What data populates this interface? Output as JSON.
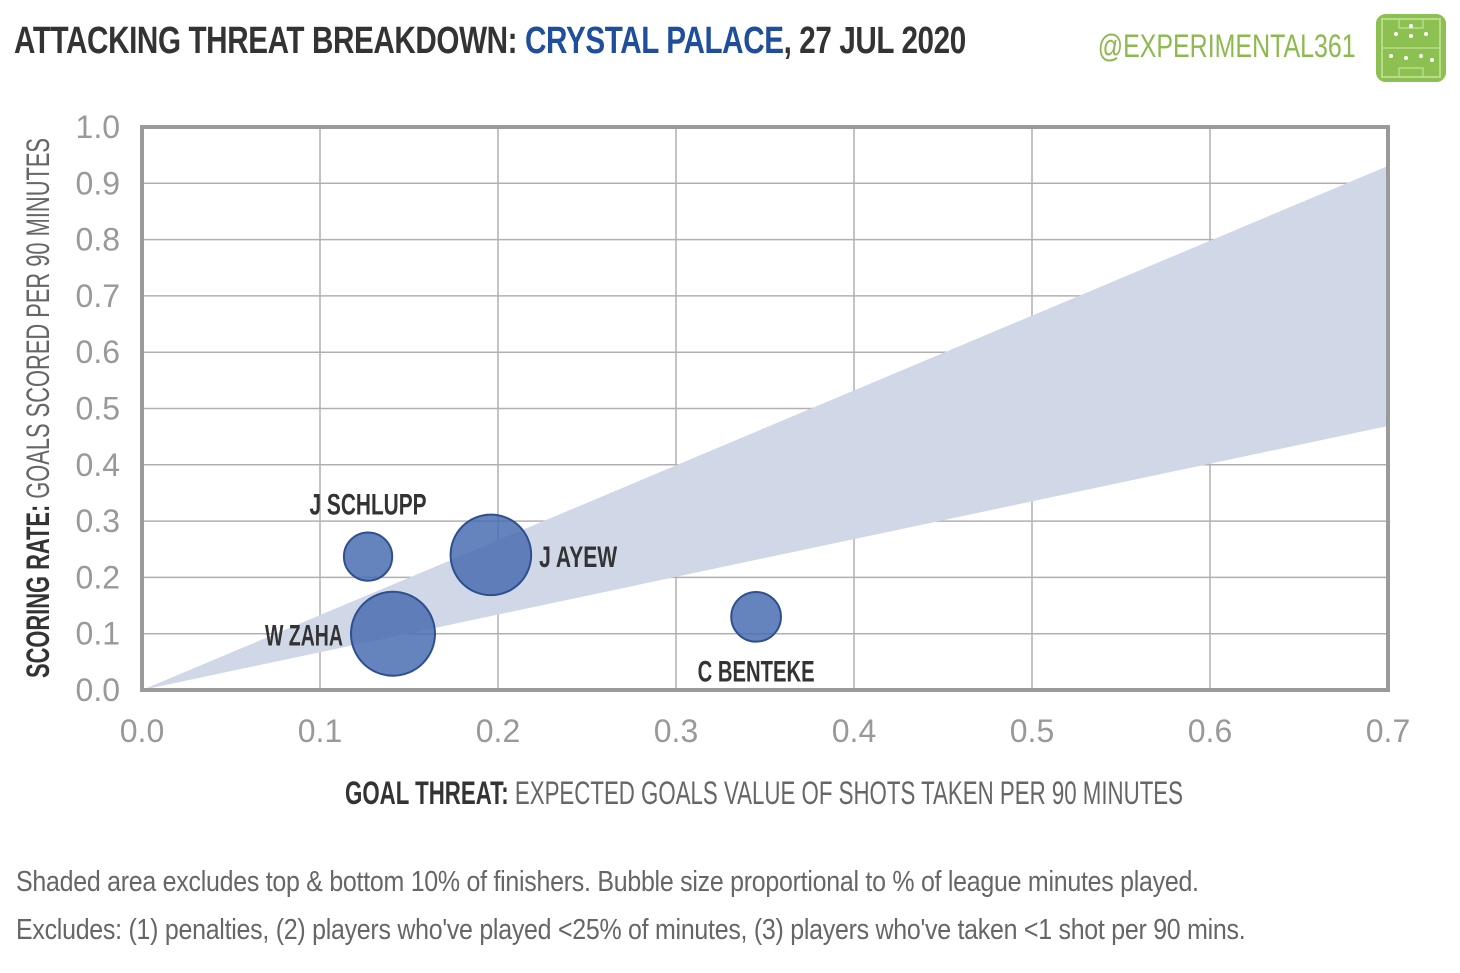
{
  "header": {
    "title_prefix": "ATTACKING THREAT BREAKDOWN:",
    "team": "CRYSTAL PALACE",
    "date": ", 27 JUL 2020",
    "handle": "@EXPERIMENTAL361",
    "logo_icon": "pitch-logo-icon"
  },
  "colors": {
    "team": "#1f4e9c",
    "handle": "#8db94f",
    "bubble": "#4a6db0",
    "band": "#d0d8e8"
  },
  "chart_data": {
    "type": "scatter",
    "xlim": [
      0,
      0.7
    ],
    "ylim": [
      0,
      1.0
    ],
    "x_ticks": [
      0.0,
      0.1,
      0.2,
      0.3,
      0.4,
      0.5,
      0.6,
      0.7
    ],
    "x_tick_labels": [
      "0.0",
      "0.1",
      "0.2",
      "0.3",
      "0.4",
      "0.5",
      "0.6",
      "0.7"
    ],
    "y_ticks": [
      0.0,
      0.1,
      0.2,
      0.3,
      0.4,
      0.5,
      0.6,
      0.7,
      0.8,
      0.9,
      1.0
    ],
    "y_tick_labels": [
      "0.0",
      "0.1",
      "0.2",
      "0.3",
      "0.4",
      "0.5",
      "0.6",
      "0.7",
      "0.8",
      "0.9",
      "1.0"
    ],
    "grid": true,
    "xlabel_bold": "GOAL THREAT:",
    "xlabel_rest": "EXPECTED GOALS VALUE OF SHOTS TAKEN PER 90 MINUTES",
    "ylabel_bold": "SCORING RATE:",
    "ylabel_rest": "GOALS SCORED PER 90 MINUTES",
    "band": {
      "upper_slope": 1.33,
      "lower_slope": 0.67
    },
    "points": [
      {
        "name": "J SCHLUPP",
        "x": 0.127,
        "y": 0.237,
        "minutes_share": 0.33,
        "label_pos": "above"
      },
      {
        "name": "J AYEW",
        "x": 0.196,
        "y": 0.24,
        "minutes_share": 0.92,
        "label_pos": "right"
      },
      {
        "name": "W ZAHA",
        "x": 0.141,
        "y": 0.1,
        "minutes_share": 1.0,
        "label_pos": "left"
      },
      {
        "name": "C BENTEKE",
        "x": 0.345,
        "y": 0.13,
        "minutes_share": 0.35,
        "label_pos": "below"
      }
    ]
  },
  "footnotes": {
    "line1": "Shaded area excludes top & bottom 10% of finishers. Bubble size proportional to % of league minutes played.",
    "line2": "Excludes: (1) penalties, (2) players who've played <25% of minutes, (3) players who've taken <1 shot per 90 mins."
  }
}
